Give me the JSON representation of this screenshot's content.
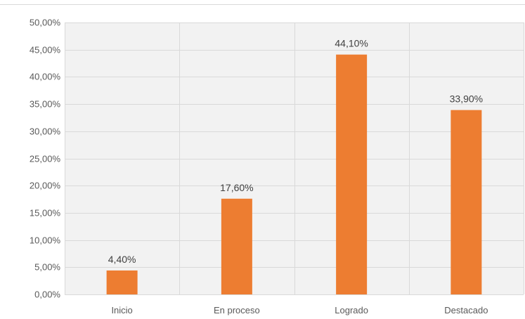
{
  "chart_data": {
    "type": "bar",
    "categories": [
      "Inicio",
      "En proceso",
      "Logrado",
      "Destacado"
    ],
    "values": [
      4.4,
      17.6,
      44.1,
      33.9
    ],
    "data_labels": [
      "4,40%",
      "17,60%",
      "44,10%",
      "33,90%"
    ],
    "ylim": [
      0,
      50
    ],
    "yticks": [
      {
        "value": 0,
        "label": "0,00%"
      },
      {
        "value": 5,
        "label": "5,00%"
      },
      {
        "value": 10,
        "label": "10,00%"
      },
      {
        "value": 15,
        "label": "15,00%"
      },
      {
        "value": 20,
        "label": "20,00%"
      },
      {
        "value": 25,
        "label": "25,00%"
      },
      {
        "value": 30,
        "label": "30,00%"
      },
      {
        "value": 35,
        "label": "35,00%"
      },
      {
        "value": 40,
        "label": "40,00%"
      },
      {
        "value": 45,
        "label": "45,00%"
      },
      {
        "value": 50,
        "label": "50,00%"
      }
    ],
    "title": "",
    "xlabel": "",
    "ylabel": "",
    "grid": true,
    "legend": "none",
    "colors": {
      "bar": "#ED7D31",
      "plot_background": "#F2F2F2",
      "grid": "#D9D9D9",
      "text": "#595959"
    }
  }
}
